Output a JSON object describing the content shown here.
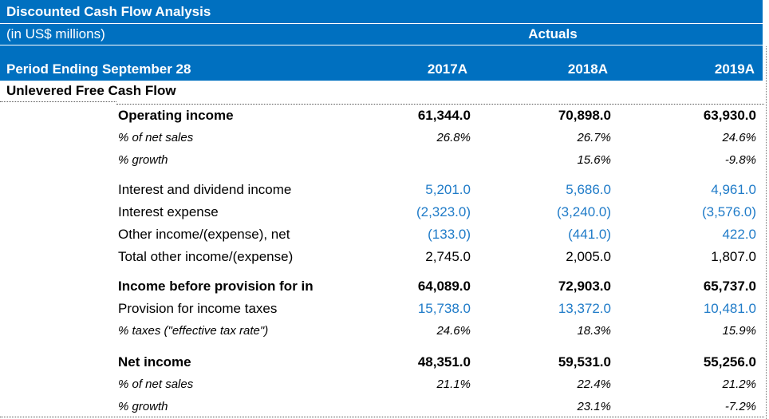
{
  "header": {
    "title": "Discounted Cash Flow Analysis",
    "units": "(in US$ millions)",
    "actuals_label": "Actuals",
    "period_label": "Period Ending September 28",
    "years": [
      "2017A",
      "2018A",
      "2019A"
    ]
  },
  "section_title": "Unlevered Free Cash Flow",
  "rows": [
    {
      "label": "Operating income",
      "v1": "61,344.0",
      "v2": "70,898.0",
      "v3": "63,930.0"
    },
    {
      "label": "% of net sales",
      "v1": "26.8%",
      "v2": "26.7%",
      "v3": "24.6%"
    },
    {
      "label": "% growth",
      "v1": "",
      "v2": "15.6%",
      "v3": "-9.8%"
    },
    {
      "label": "Interest and dividend income",
      "v1": "5,201.0",
      "v2": "5,686.0",
      "v3": "4,961.0"
    },
    {
      "label": "Interest expense",
      "v1": "(2,323.0)",
      "v2": "(3,240.0)",
      "v3": "(3,576.0)"
    },
    {
      "label": "Other income/(expense), net",
      "v1": "(133.0)",
      "v2": "(441.0)",
      "v3": "422.0"
    },
    {
      "label": "Total other income/(expense)",
      "v1": "2,745.0",
      "v2": "2,005.0",
      "v3": "1,807.0"
    },
    {
      "label": "Income before provision for in",
      "v1": "64,089.0",
      "v2": "72,903.0",
      "v3": "65,737.0"
    },
    {
      "label": "Provision for income taxes",
      "v1": "15,738.0",
      "v2": "13,372.0",
      "v3": "10,481.0"
    },
    {
      "label": "% taxes (\"effective tax rate\")",
      "v1": "24.6%",
      "v2": "18.3%",
      "v3": "15.9%"
    },
    {
      "label": "Net income",
      "v1": "48,351.0",
      "v2": "59,531.0",
      "v3": "55,256.0"
    },
    {
      "label": "% of net sales",
      "v1": "21.1%",
      "v2": "22.4%",
      "v3": "21.2%"
    },
    {
      "label": "% growth",
      "v1": "",
      "v2": "23.1%",
      "v3": "-7.2%"
    }
  ]
}
